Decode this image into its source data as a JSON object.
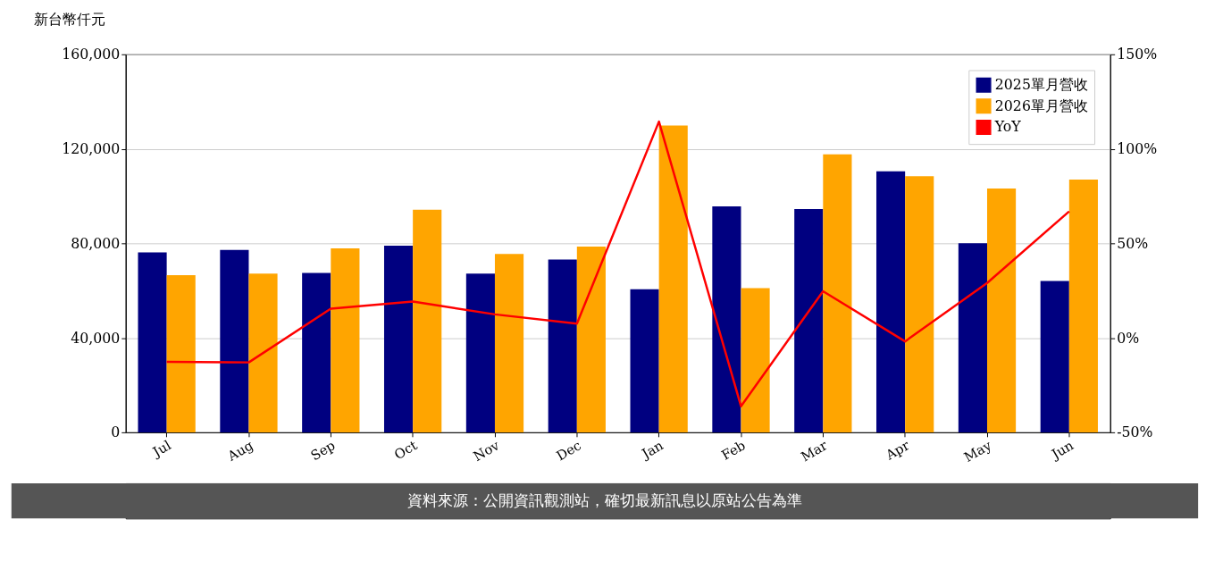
{
  "chart_data": {
    "type": "bar",
    "ylabel": "新台幣仟元",
    "categories": [
      "Jul",
      "Aug",
      "Sep",
      "Oct",
      "Nov",
      "Dec",
      "Jan",
      "Feb",
      "Mar",
      "Apr",
      "May",
      "Jun"
    ],
    "series": [
      {
        "name": "2025單月營收",
        "color": "#000080",
        "values": [
          76200,
          77200,
          67500,
          79000,
          67200,
          73100,
          60600,
          95600,
          94500,
          110500,
          80000,
          64100
        ]
      },
      {
        "name": "2026單月營收",
        "color": "#ffa500",
        "values": [
          66500,
          67200,
          77900,
          94200,
          75500,
          78600,
          129900,
          61000,
          117700,
          108400,
          103200,
          107000
        ]
      },
      {
        "name": "YoY",
        "type": "line",
        "axis": "y2",
        "color": "#ff0000",
        "values": [
          -12.7,
          -13,
          15.4,
          19.2,
          12.4,
          7.5,
          114.4,
          -36.2,
          24.6,
          -1.9,
          29,
          66.9
        ]
      }
    ],
    "ylim": [
      0,
      160000
    ],
    "yticks": [
      {
        "value": 0,
        "label": "0"
      },
      {
        "value": 40000,
        "label": "40,000"
      },
      {
        "value": 80000,
        "label": "80,000"
      },
      {
        "value": 120000,
        "label": "120,000"
      },
      {
        "value": 160000,
        "label": "160,000"
      }
    ],
    "y2lim": [
      -50,
      150
    ],
    "y2ticks": [
      {
        "value": -50,
        "label": "-50%"
      },
      {
        "value": 0,
        "label": "0%"
      },
      {
        "value": 50,
        "label": "50%"
      },
      {
        "value": 100,
        "label": "100%"
      },
      {
        "value": 150,
        "label": "150%"
      }
    ],
    "grid": "y",
    "legend": "top right",
    "annotations": [
      "資料來源：公開資訊觀測站，確切最新訊息以原站公告為準"
    ]
  }
}
